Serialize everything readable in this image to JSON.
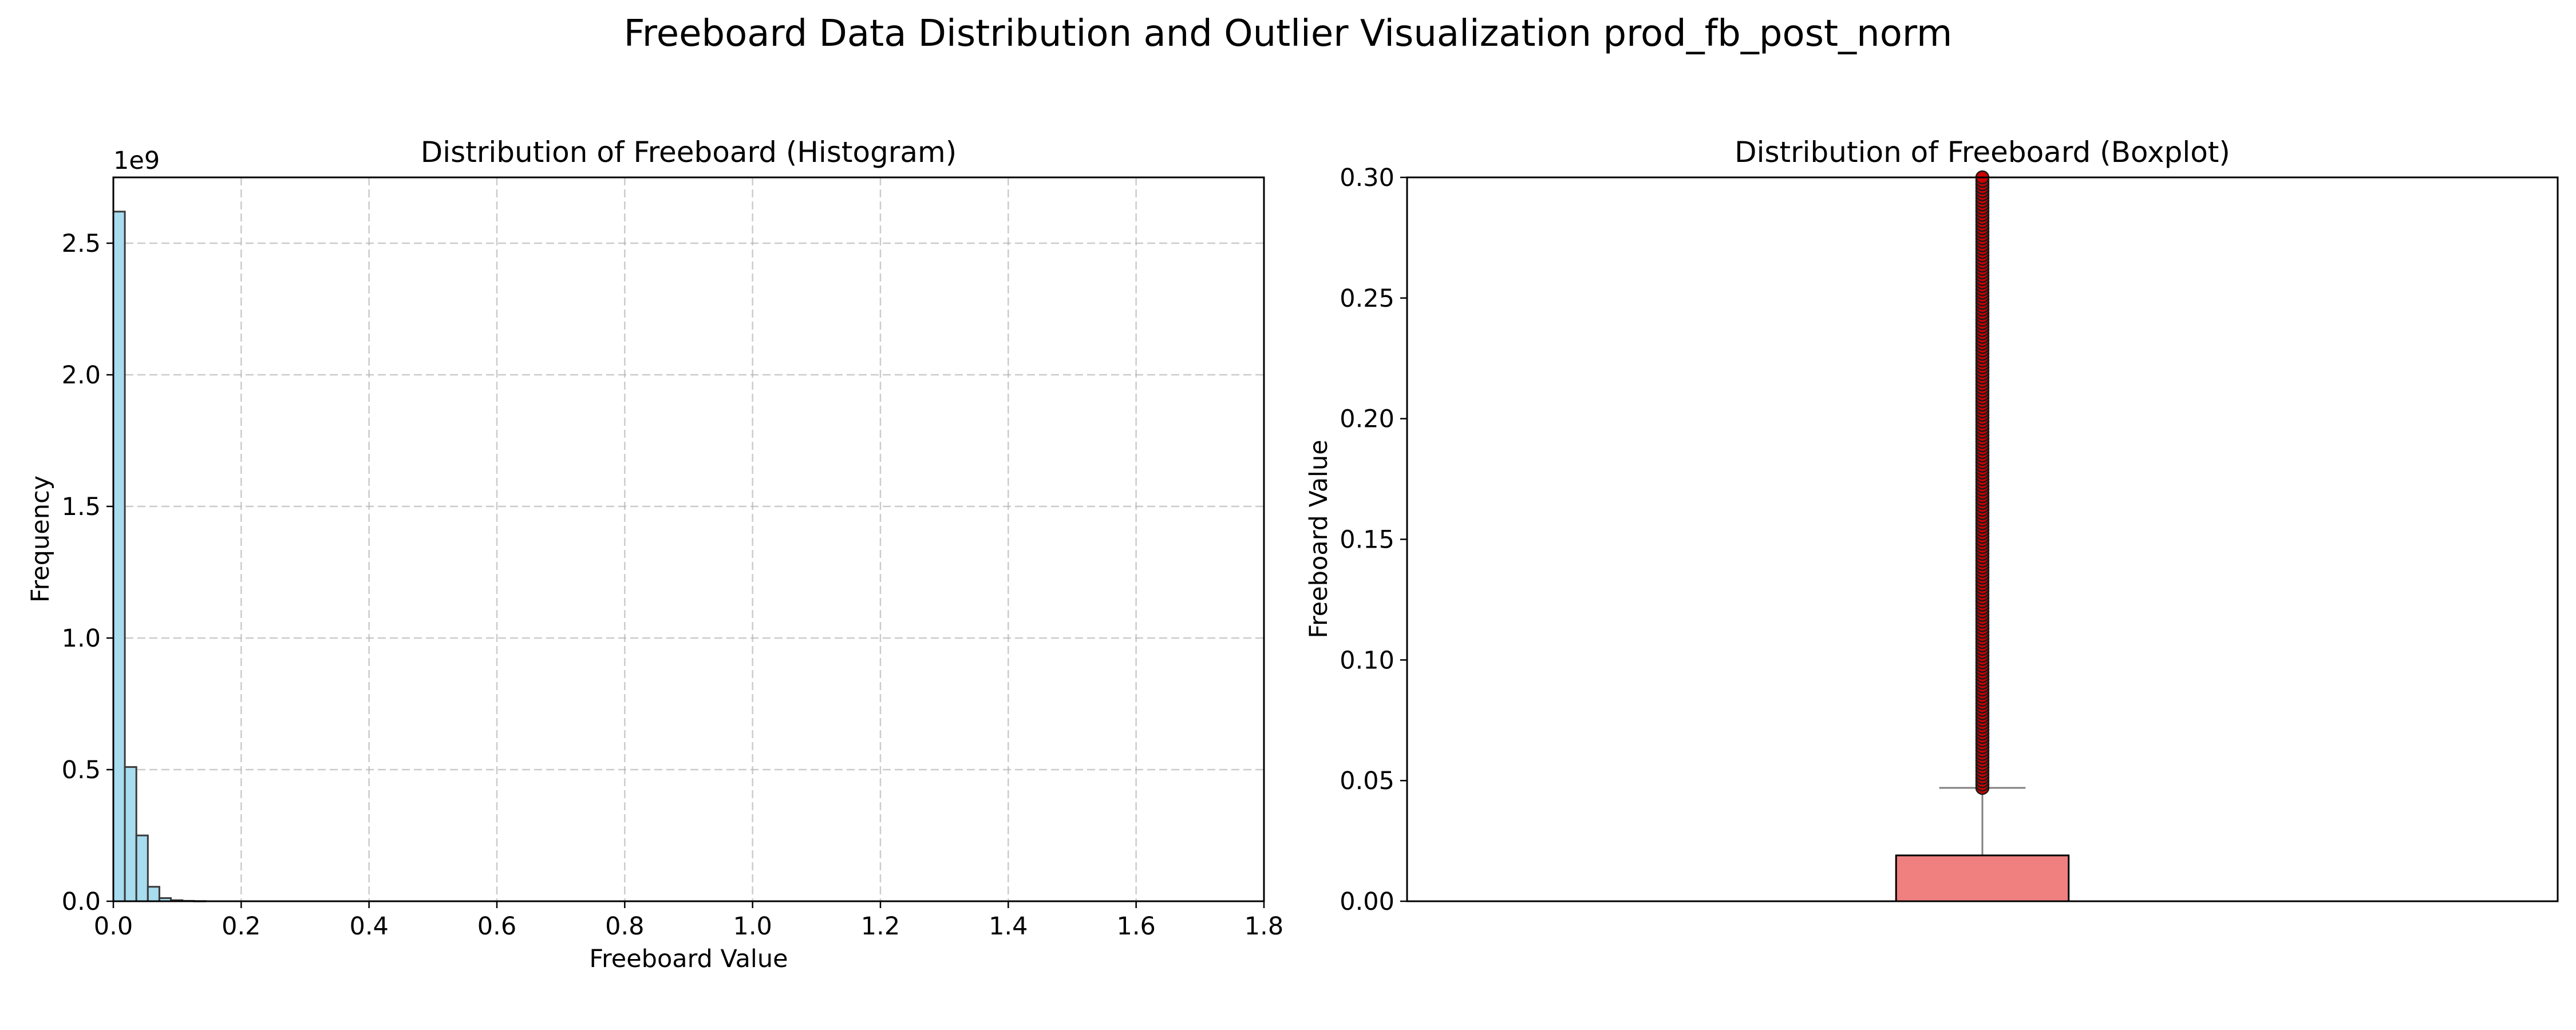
{
  "figure": {
    "title": "Freeboard Data Distribution and Outlier Visualization prod_fb_post_norm"
  },
  "chart_data": [
    {
      "type": "bar",
      "subtype": "histogram",
      "title": "Distribution of Freeboard (Histogram)",
      "xlabel": "Freeboard Value",
      "ylabel": "Frequency",
      "y_offset_label": "1e9",
      "xlim": [
        0.0,
        1.8
      ],
      "ylim": [
        0,
        2.75
      ],
      "x_ticks": [
        "0.0",
        "0.2",
        "0.4",
        "0.6",
        "0.8",
        "1.0",
        "1.2",
        "1.4",
        "1.6",
        "1.8"
      ],
      "y_ticks": [
        "0.0",
        "0.5",
        "1.0",
        "1.5",
        "2.0",
        "2.5"
      ],
      "grid": true,
      "bar_color": "#a8dcef",
      "edge_color": "#3a3a3a",
      "bins": [
        {
          "x0": 0.0,
          "x1": 0.018,
          "value": 2.62
        },
        {
          "x0": 0.018,
          "x1": 0.036,
          "value": 0.51
        },
        {
          "x0": 0.036,
          "x1": 0.054,
          "value": 0.25
        },
        {
          "x0": 0.054,
          "x1": 0.072,
          "value": 0.055
        },
        {
          "x0": 0.072,
          "x1": 0.09,
          "value": 0.012
        },
        {
          "x0": 0.09,
          "x1": 0.108,
          "value": 0.004
        },
        {
          "x0": 0.108,
          "x1": 0.126,
          "value": 0.0015
        },
        {
          "x0": 0.126,
          "x1": 0.144,
          "value": 0.0006
        }
      ]
    },
    {
      "type": "box",
      "title": "Distribution of Freeboard (Boxplot)",
      "xlabel": "",
      "ylabel": "Freeboard Value",
      "ylim": [
        0.0,
        0.3
      ],
      "y_ticks": [
        "0.00",
        "0.05",
        "0.10",
        "0.15",
        "0.20",
        "0.25",
        "0.30"
      ],
      "grid": false,
      "box_color": "#f08080",
      "outlier_color": "#cc0000",
      "q1": 0.0,
      "median": 0.0,
      "q3": 0.019,
      "whisker_low": 0.0,
      "whisker_high": 0.047,
      "outliers_from": 0.047,
      "outliers_to": 0.3
    }
  ]
}
